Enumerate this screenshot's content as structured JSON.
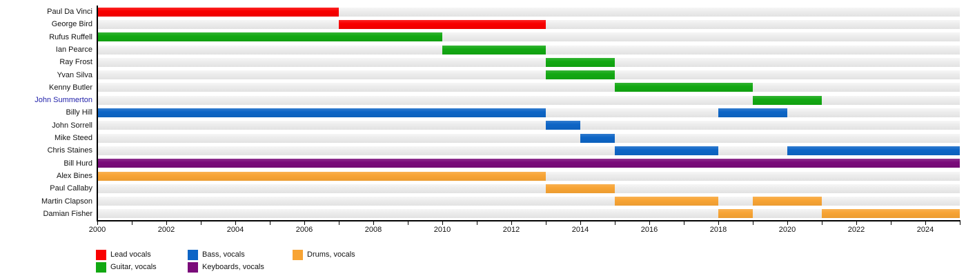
{
  "chart_data": {
    "type": "bar",
    "subtype": "gantt-member-timeline",
    "title": "",
    "x_axis": {
      "start": 2000,
      "end": 2025,
      "tick_step": 1,
      "label_step": 2,
      "tick_labels": [
        "2000",
        "2002",
        "2004",
        "2006",
        "2008",
        "2010",
        "2012",
        "2014",
        "2016",
        "2018",
        "2020",
        "2022",
        "2024"
      ]
    },
    "colors": {
      "lead": "#f90000",
      "guitar": "#12a812",
      "bass": "#0d65c6",
      "keyboards": "#7a0b7a",
      "drums": "#f8a434",
      "band_background": "#e8e8e8",
      "link_text": "#2222aa",
      "label_text": "#111111"
    },
    "members": [
      {
        "name": "Paul Da Vinci",
        "role": "lead",
        "link": false,
        "segments": [
          [
            2000,
            2007
          ]
        ]
      },
      {
        "name": "George Bird",
        "role": "lead",
        "link": false,
        "segments": [
          [
            2007,
            2013
          ]
        ]
      },
      {
        "name": "Rufus Ruffell",
        "role": "guitar",
        "link": false,
        "segments": [
          [
            2000,
            2010
          ]
        ]
      },
      {
        "name": "Ian Pearce",
        "role": "guitar",
        "link": false,
        "segments": [
          [
            2010,
            2013
          ]
        ]
      },
      {
        "name": "Ray Frost",
        "role": "guitar",
        "link": false,
        "segments": [
          [
            2013,
            2015
          ]
        ]
      },
      {
        "name": "Yvan Silva",
        "role": "guitar",
        "link": false,
        "segments": [
          [
            2013,
            2015
          ]
        ]
      },
      {
        "name": "Kenny Butler",
        "role": "guitar",
        "link": false,
        "segments": [
          [
            2015,
            2019
          ]
        ]
      },
      {
        "name": "John Summerton",
        "role": "guitar",
        "link": true,
        "segments": [
          [
            2019,
            2021
          ]
        ]
      },
      {
        "name": "Billy Hill",
        "role": "bass",
        "link": false,
        "segments": [
          [
            2000,
            2013
          ],
          [
            2018,
            2020
          ]
        ]
      },
      {
        "name": "John Sorrell",
        "role": "bass",
        "link": false,
        "segments": [
          [
            2013,
            2014
          ]
        ]
      },
      {
        "name": "Mike Steed",
        "role": "bass",
        "link": false,
        "segments": [
          [
            2014,
            2015
          ]
        ]
      },
      {
        "name": "Chris Staines",
        "role": "bass",
        "link": false,
        "segments": [
          [
            2015,
            2018
          ],
          [
            2020,
            2025
          ]
        ]
      },
      {
        "name": "Bill Hurd",
        "role": "keyboards",
        "link": false,
        "segments": [
          [
            2000,
            2025
          ]
        ]
      },
      {
        "name": "Alex Bines",
        "role": "drums",
        "link": false,
        "segments": [
          [
            2000,
            2013
          ]
        ]
      },
      {
        "name": "Paul Callaby",
        "role": "drums",
        "link": false,
        "segments": [
          [
            2013,
            2015
          ]
        ]
      },
      {
        "name": "Martin Clapson",
        "role": "drums",
        "link": false,
        "segments": [
          [
            2015,
            2018
          ],
          [
            2019,
            2021
          ]
        ]
      },
      {
        "name": "Damian Fisher",
        "role": "drums",
        "link": false,
        "segments": [
          [
            2018,
            2019
          ],
          [
            2021,
            2025
          ]
        ]
      }
    ],
    "legend": [
      {
        "label": "Lead vocals",
        "color_key": "lead"
      },
      {
        "label": "Guitar, vocals",
        "color_key": "guitar"
      },
      {
        "label": "Bass, vocals",
        "color_key": "bass"
      },
      {
        "label": "Keyboards, vocals",
        "color_key": "keyboards"
      },
      {
        "label": "Drums, vocals",
        "color_key": "drums"
      }
    ],
    "legend_position": "bottom-left",
    "grid": false
  }
}
